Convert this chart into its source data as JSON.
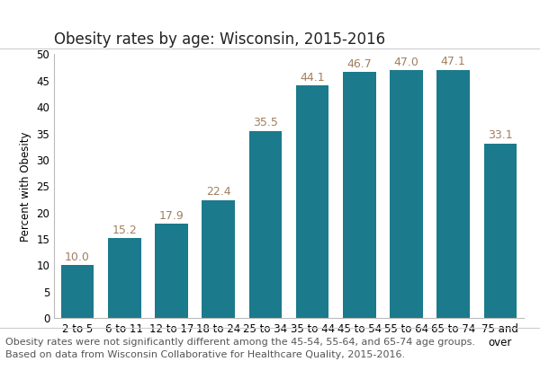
{
  "title": "Obesity rates by age: Wisconsin, 2015-2016",
  "categories": [
    "2 to 5",
    "6 to 11",
    "12 to 17",
    "18 to 24",
    "25 to 34",
    "35 to 44",
    "45 to 54",
    "55 to 64",
    "65 to 74",
    "75 and\nover"
  ],
  "values": [
    10.0,
    15.2,
    17.9,
    22.4,
    35.5,
    44.1,
    46.7,
    47.0,
    47.1,
    33.1
  ],
  "bar_color": "#1b7a8c",
  "label_color": "#a08060",
  "ylabel": "Percent with Obesity",
  "ylim": [
    0,
    50
  ],
  "yticks": [
    0,
    5,
    10,
    15,
    20,
    25,
    30,
    35,
    40,
    45,
    50
  ],
  "footnote_line1": "Obesity rates were not significantly different among the 45-54, 55-64, and 65-74 age groups.",
  "footnote_line2": "Based on data from Wisconsin Collaborative for Healthcare Quality, 2015-2016.",
  "title_fontsize": 12,
  "label_fontsize": 9,
  "axis_fontsize": 8.5,
  "footnote_fontsize": 8
}
